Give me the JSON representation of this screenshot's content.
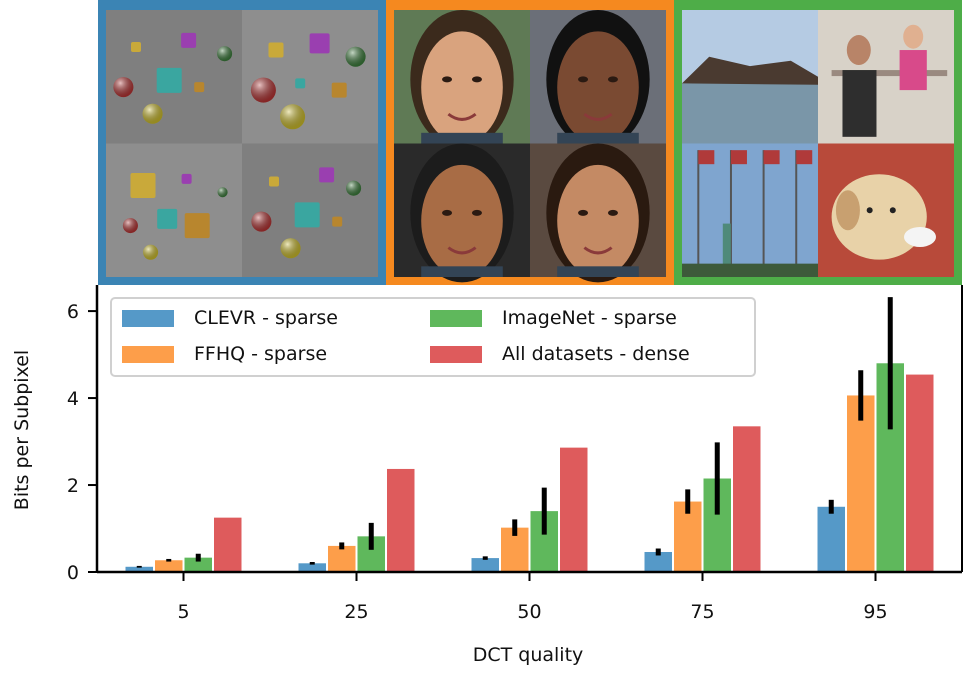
{
  "chart_data": {
    "type": "bar",
    "xlabel": "DCT quality",
    "ylabel": "Bits per Subpixel",
    "categories": [
      "5",
      "25",
      "50",
      "75",
      "95"
    ],
    "ylim": [
      0,
      6.6
    ],
    "yticks": [
      0,
      2,
      4,
      6
    ],
    "legend_position": "top-left",
    "series": [
      {
        "name": "CLEVR - sparse",
        "color": "#5599c8",
        "values": [
          0.12,
          0.2,
          0.32,
          0.46,
          1.5
        ],
        "err": [
          0.02,
          0.03,
          0.04,
          0.08,
          0.16
        ]
      },
      {
        "name": "FFHQ - sparse",
        "color": "#fd9e4a",
        "values": [
          0.27,
          0.6,
          1.02,
          1.62,
          4.06
        ],
        "err": [
          0.03,
          0.08,
          0.19,
          0.28,
          0.58
        ]
      },
      {
        "name": "ImageNet - sparse",
        "color": "#5fb85c",
        "values": [
          0.33,
          0.82,
          1.4,
          2.15,
          4.8
        ],
        "err": [
          0.09,
          0.31,
          0.54,
          0.83,
          1.52
        ]
      },
      {
        "name": "All datasets - dense",
        "color": "#de5b5c",
        "values": [
          1.25,
          2.37,
          2.86,
          3.35,
          4.54
        ],
        "err": null
      }
    ]
  },
  "thumbnails": [
    {
      "name": "CLEVR",
      "border": "#3b84b4"
    },
    {
      "name": "FFHQ",
      "border": "#f5891f"
    },
    {
      "name": "ImageNet",
      "border": "#4ead48"
    }
  ]
}
